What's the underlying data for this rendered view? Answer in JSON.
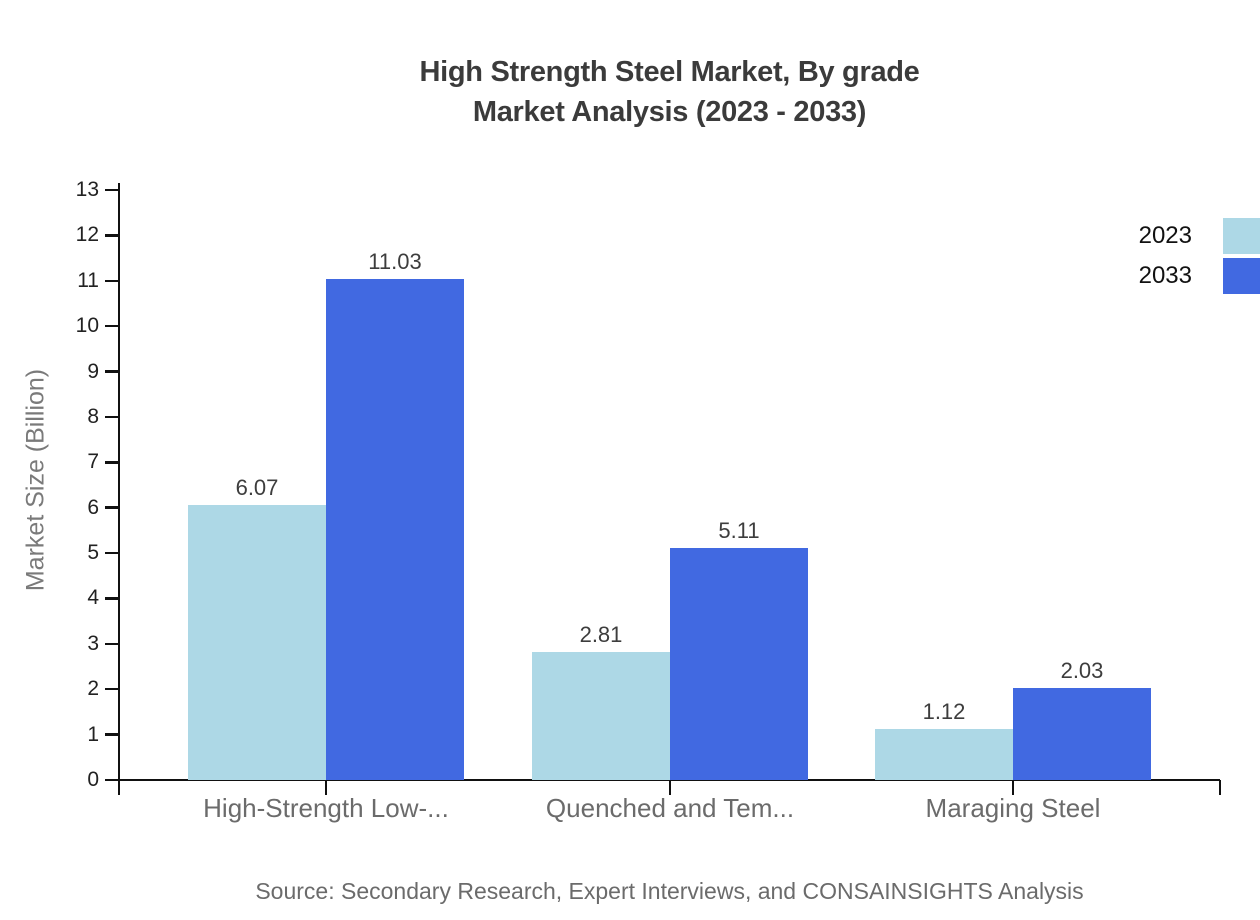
{
  "title": {
    "line1": "High Strength Steel Market, By grade",
    "line2": "Market Analysis (2023 - 2033)"
  },
  "source": "Source: Secondary Research, Expert Interviews, and CONSAINSIGHTS Analysis",
  "colors": {
    "series_2023": "#ADD8E6",
    "series_2033": "#4169E1",
    "axis_line": "#111111",
    "title_text": "#3b3b3b",
    "muted_text": "#6b6b6b",
    "tick_text": "#222222"
  },
  "chart_data": {
    "type": "bar",
    "title": "High Strength Steel Market, By grade Market Analysis (2023 - 2033)",
    "categories": [
      "High-Strength Low-...",
      "Quenched and Tem...",
      "Maraging Steel"
    ],
    "series": [
      {
        "name": "2023",
        "color": "#ADD8E6",
        "values": [
          6.07,
          2.81,
          1.12
        ]
      },
      {
        "name": "2033",
        "color": "#4169E1",
        "values": [
          11.03,
          5.11,
          2.03
        ]
      }
    ],
    "value_labels": [
      "6.07",
      "11.03",
      "2.81",
      "5.11",
      "1.12",
      "2.03"
    ],
    "xlabel": "",
    "ylabel": "Market Size (Billion)",
    "ylim": [
      0,
      13
    ],
    "ytick_step": 1,
    "yticks": [
      0,
      1,
      2,
      3,
      4,
      5,
      6,
      7,
      8,
      9,
      10,
      11,
      12,
      13
    ],
    "grid": false,
    "legend_position": "top-right",
    "legend_entries": [
      "2023",
      "2033"
    ]
  }
}
